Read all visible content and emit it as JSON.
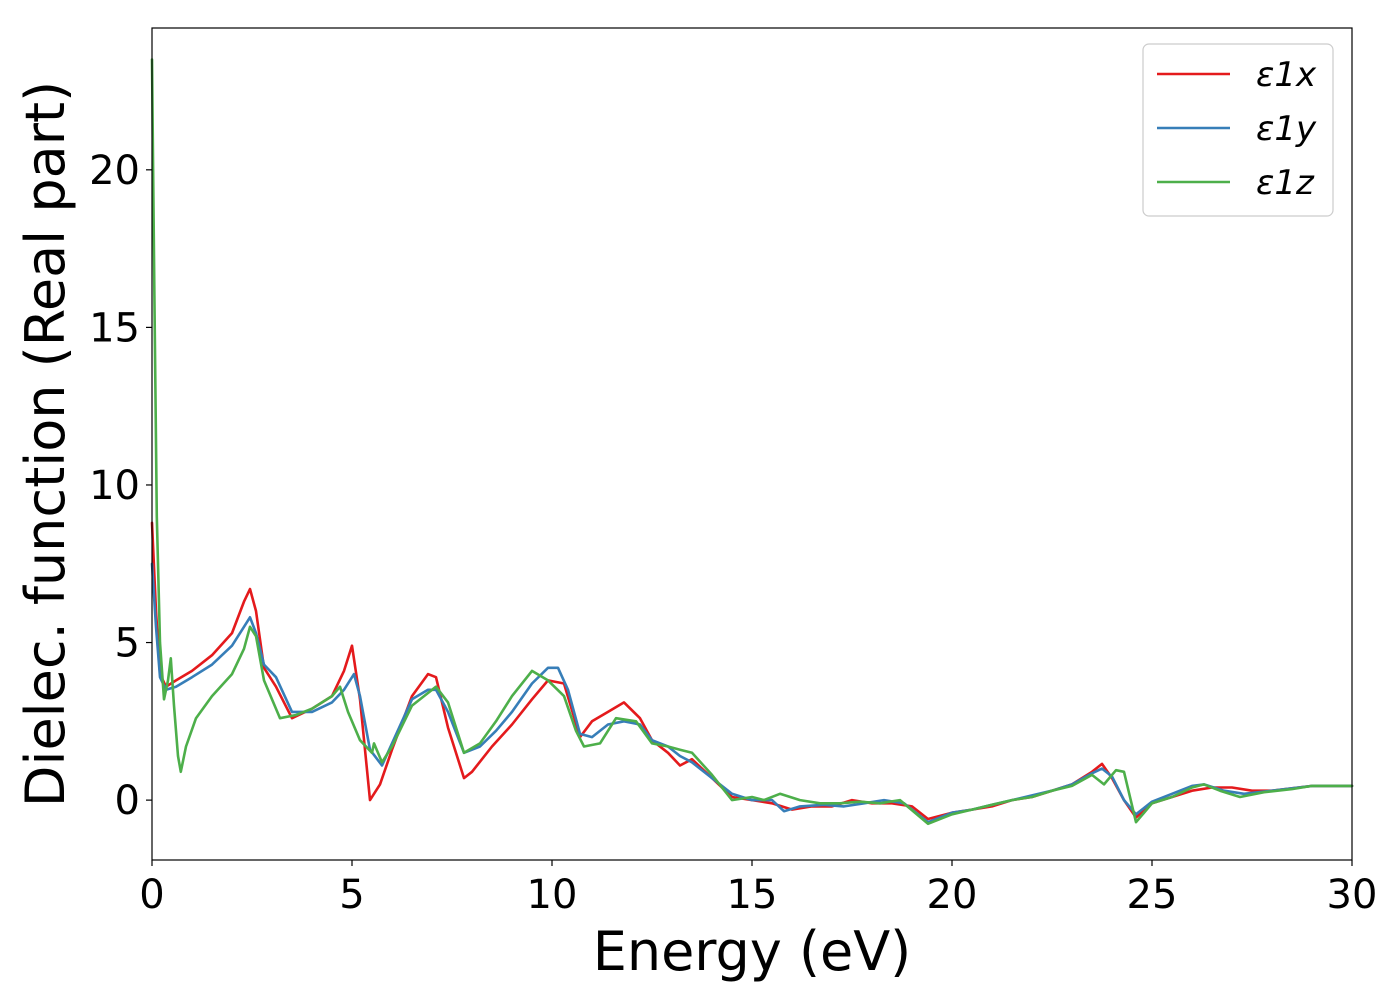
{
  "chart_data": {
    "type": "line",
    "xlabel": "Energy (eV)",
    "ylabel": "Dielec. function (Real part)",
    "xlim": [
      0,
      30
    ],
    "ylim": [
      -1.9,
      24.5
    ],
    "xticks": [
      0,
      5,
      10,
      15,
      20,
      25,
      30
    ],
    "yticks": [
      0,
      5,
      10,
      15,
      20
    ],
    "grid": false,
    "legend_position": "top-right",
    "series": [
      {
        "name": "ε1x",
        "color": "#e41a1c",
        "points": [
          [
            0,
            8.8
          ],
          [
            0.1,
            6
          ],
          [
            0.2,
            4
          ],
          [
            0.35,
            3.6
          ],
          [
            0.6,
            3.8
          ],
          [
            1,
            4.1
          ],
          [
            1.5,
            4.6
          ],
          [
            2,
            5.3
          ],
          [
            2.3,
            6.3
          ],
          [
            2.45,
            6.7
          ],
          [
            2.6,
            6
          ],
          [
            2.8,
            4.2
          ],
          [
            3.1,
            3.6
          ],
          [
            3.5,
            2.6
          ],
          [
            4,
            2.9
          ],
          [
            4.5,
            3.3
          ],
          [
            4.8,
            4.1
          ],
          [
            5,
            4.9
          ],
          [
            5.2,
            3.2
          ],
          [
            5.45,
            0
          ],
          [
            5.7,
            0.5
          ],
          [
            6,
            1.6
          ],
          [
            6.5,
            3.3
          ],
          [
            6.9,
            4
          ],
          [
            7.1,
            3.9
          ],
          [
            7.4,
            2.3
          ],
          [
            7.8,
            0.7
          ],
          [
            8,
            0.9
          ],
          [
            8.5,
            1.7
          ],
          [
            9,
            2.4
          ],
          [
            9.5,
            3.2
          ],
          [
            9.9,
            3.8
          ],
          [
            10.3,
            3.7
          ],
          [
            10.7,
            2
          ],
          [
            11,
            2.5
          ],
          [
            11.4,
            2.8
          ],
          [
            11.8,
            3.1
          ],
          [
            12.2,
            2.6
          ],
          [
            12.5,
            1.9
          ],
          [
            12.9,
            1.5
          ],
          [
            13.2,
            1.1
          ],
          [
            13.5,
            1.3
          ],
          [
            14,
            0.7
          ],
          [
            14.5,
            0.1
          ],
          [
            15,
            0
          ],
          [
            15.5,
            -0.1
          ],
          [
            16,
            -0.3
          ],
          [
            16.5,
            -0.2
          ],
          [
            17,
            -0.2
          ],
          [
            17.5,
            0
          ],
          [
            18,
            -0.1
          ],
          [
            18.5,
            -0.1
          ],
          [
            19,
            -0.2
          ],
          [
            19.4,
            -0.6
          ],
          [
            20,
            -0.4
          ],
          [
            20.5,
            -0.3
          ],
          [
            21,
            -0.2
          ],
          [
            21.5,
            0
          ],
          [
            22,
            0.1
          ],
          [
            22.5,
            0.3
          ],
          [
            23,
            0.5
          ],
          [
            23.5,
            0.9
          ],
          [
            23.75,
            1.15
          ],
          [
            24,
            0.7
          ],
          [
            24.3,
            0
          ],
          [
            24.6,
            -0.55
          ],
          [
            25,
            -0.1
          ],
          [
            25.5,
            0.1
          ],
          [
            26,
            0.3
          ],
          [
            26.5,
            0.4
          ],
          [
            27,
            0.4
          ],
          [
            27.5,
            0.3
          ],
          [
            28,
            0.3
          ],
          [
            29,
            0.45
          ],
          [
            30,
            0.45
          ]
        ]
      },
      {
        "name": "ε1y",
        "color": "#377eb8",
        "points": [
          [
            0,
            7.5
          ],
          [
            0.1,
            5.5
          ],
          [
            0.2,
            3.9
          ],
          [
            0.35,
            3.5
          ],
          [
            0.6,
            3.6
          ],
          [
            1,
            3.9
          ],
          [
            1.5,
            4.3
          ],
          [
            2,
            4.9
          ],
          [
            2.3,
            5.5
          ],
          [
            2.45,
            5.8
          ],
          [
            2.6,
            5.3
          ],
          [
            2.8,
            4.3
          ],
          [
            3.1,
            3.9
          ],
          [
            3.5,
            2.8
          ],
          [
            4,
            2.8
          ],
          [
            4.5,
            3.1
          ],
          [
            4.8,
            3.5
          ],
          [
            5.05,
            4
          ],
          [
            5.2,
            3.3
          ],
          [
            5.45,
            1.6
          ],
          [
            5.75,
            1.1
          ],
          [
            6,
            1.8
          ],
          [
            6.5,
            3.2
          ],
          [
            6.9,
            3.5
          ],
          [
            7.1,
            3.5
          ],
          [
            7.4,
            2.8
          ],
          [
            7.8,
            1.5
          ],
          [
            8.2,
            1.7
          ],
          [
            8.6,
            2.2
          ],
          [
            9,
            2.8
          ],
          [
            9.5,
            3.7
          ],
          [
            9.9,
            4.2
          ],
          [
            10.15,
            4.2
          ],
          [
            10.4,
            3.5
          ],
          [
            10.7,
            2.1
          ],
          [
            11,
            2
          ],
          [
            11.4,
            2.4
          ],
          [
            11.8,
            2.5
          ],
          [
            12.2,
            2.4
          ],
          [
            12.5,
            1.9
          ],
          [
            12.9,
            1.7
          ],
          [
            13.2,
            1.4
          ],
          [
            13.5,
            1.2
          ],
          [
            14,
            0.7
          ],
          [
            14.5,
            0.2
          ],
          [
            15,
            0
          ],
          [
            15.5,
            0
          ],
          [
            15.8,
            -0.35
          ],
          [
            16.2,
            -0.2
          ],
          [
            16.8,
            -0.15
          ],
          [
            17.3,
            -0.2
          ],
          [
            17.8,
            -0.1
          ],
          [
            18.3,
            0
          ],
          [
            18.8,
            -0.1
          ],
          [
            19.4,
            -0.7
          ],
          [
            20,
            -0.4
          ],
          [
            20.5,
            -0.3
          ],
          [
            21,
            -0.15
          ],
          [
            21.5,
            0
          ],
          [
            22,
            0.15
          ],
          [
            22.5,
            0.3
          ],
          [
            23,
            0.5
          ],
          [
            23.5,
            0.85
          ],
          [
            23.75,
            1
          ],
          [
            24,
            0.75
          ],
          [
            24.3,
            0
          ],
          [
            24.6,
            -0.45
          ],
          [
            25,
            -0.05
          ],
          [
            25.5,
            0.2
          ],
          [
            26,
            0.45
          ],
          [
            26.3,
            0.5
          ],
          [
            26.8,
            0.3
          ],
          [
            27.3,
            0.2
          ],
          [
            28,
            0.3
          ],
          [
            29,
            0.45
          ],
          [
            30,
            0.45
          ]
        ]
      },
      {
        "name": "ε1z",
        "color": "#4daf4a",
        "points": [
          [
            0,
            23.5
          ],
          [
            0.06,
            16
          ],
          [
            0.12,
            9
          ],
          [
            0.2,
            5
          ],
          [
            0.3,
            3.2
          ],
          [
            0.4,
            3.8
          ],
          [
            0.47,
            4.5
          ],
          [
            0.55,
            3
          ],
          [
            0.65,
            1.4
          ],
          [
            0.72,
            0.9
          ],
          [
            0.85,
            1.7
          ],
          [
            1.1,
            2.6
          ],
          [
            1.5,
            3.3
          ],
          [
            2,
            4
          ],
          [
            2.3,
            4.8
          ],
          [
            2.45,
            5.5
          ],
          [
            2.6,
            5.2
          ],
          [
            2.8,
            3.8
          ],
          [
            3.2,
            2.6
          ],
          [
            3.6,
            2.7
          ],
          [
            4,
            2.9
          ],
          [
            4.5,
            3.3
          ],
          [
            4.7,
            3.6
          ],
          [
            4.9,
            2.8
          ],
          [
            5.2,
            1.9
          ],
          [
            5.5,
            1.5
          ],
          [
            5.55,
            1.8
          ],
          [
            5.75,
            1.2
          ],
          [
            6,
            1.7
          ],
          [
            6.5,
            3
          ],
          [
            6.9,
            3.4
          ],
          [
            7.1,
            3.6
          ],
          [
            7.4,
            3.1
          ],
          [
            7.8,
            1.5
          ],
          [
            8.2,
            1.8
          ],
          [
            8.6,
            2.5
          ],
          [
            9,
            3.3
          ],
          [
            9.5,
            4.1
          ],
          [
            9.9,
            3.8
          ],
          [
            10.3,
            3.3
          ],
          [
            10.6,
            2.2
          ],
          [
            10.8,
            1.7
          ],
          [
            11.2,
            1.8
          ],
          [
            11.6,
            2.6
          ],
          [
            12.1,
            2.5
          ],
          [
            12.5,
            1.8
          ],
          [
            12.9,
            1.7
          ],
          [
            13.2,
            1.6
          ],
          [
            13.5,
            1.5
          ],
          [
            14,
            0.8
          ],
          [
            14.5,
            0
          ],
          [
            15,
            0.1
          ],
          [
            15.3,
            0
          ],
          [
            15.7,
            0.2
          ],
          [
            16.2,
            0
          ],
          [
            16.7,
            -0.1
          ],
          [
            17.2,
            -0.1
          ],
          [
            17.7,
            -0.05
          ],
          [
            18.2,
            -0.1
          ],
          [
            18.7,
            0
          ],
          [
            19.4,
            -0.75
          ],
          [
            20,
            -0.45
          ],
          [
            20.5,
            -0.3
          ],
          [
            21,
            -0.15
          ],
          [
            21.5,
            0
          ],
          [
            22,
            0.1
          ],
          [
            22.5,
            0.3
          ],
          [
            23,
            0.45
          ],
          [
            23.5,
            0.8
          ],
          [
            23.8,
            0.5
          ],
          [
            24.1,
            0.95
          ],
          [
            24.3,
            0.9
          ],
          [
            24.6,
            -0.7
          ],
          [
            25,
            -0.1
          ],
          [
            25.5,
            0.1
          ],
          [
            26,
            0.4
          ],
          [
            26.3,
            0.5
          ],
          [
            26.7,
            0.3
          ],
          [
            27.2,
            0.1
          ],
          [
            27.8,
            0.25
          ],
          [
            28.5,
            0.35
          ],
          [
            29,
            0.45
          ],
          [
            30,
            0.45
          ]
        ]
      }
    ]
  }
}
